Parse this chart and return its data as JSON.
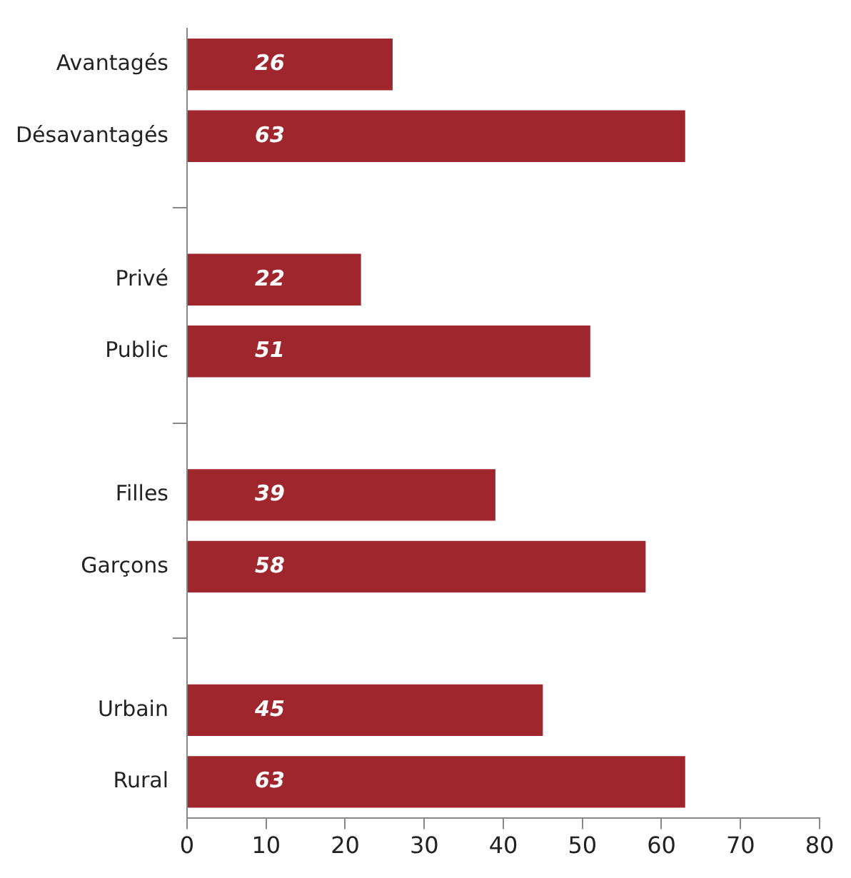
{
  "chart_data": {
    "type": "bar",
    "orientation": "horizontal",
    "categories": [
      "Avantagés",
      "Désavantagés",
      null,
      "Privé",
      "Public",
      null,
      "Filles",
      "Garçons",
      null,
      "Urbain",
      "Rural"
    ],
    "values": [
      26,
      63,
      null,
      22,
      51,
      null,
      39,
      58,
      null,
      45,
      63
    ],
    "color": "#a0262e",
    "xlim": [
      0,
      80
    ],
    "xticks": [
      0,
      10,
      20,
      30,
      40,
      50,
      60,
      70,
      80
    ],
    "grid": false,
    "data_labels": true
  }
}
